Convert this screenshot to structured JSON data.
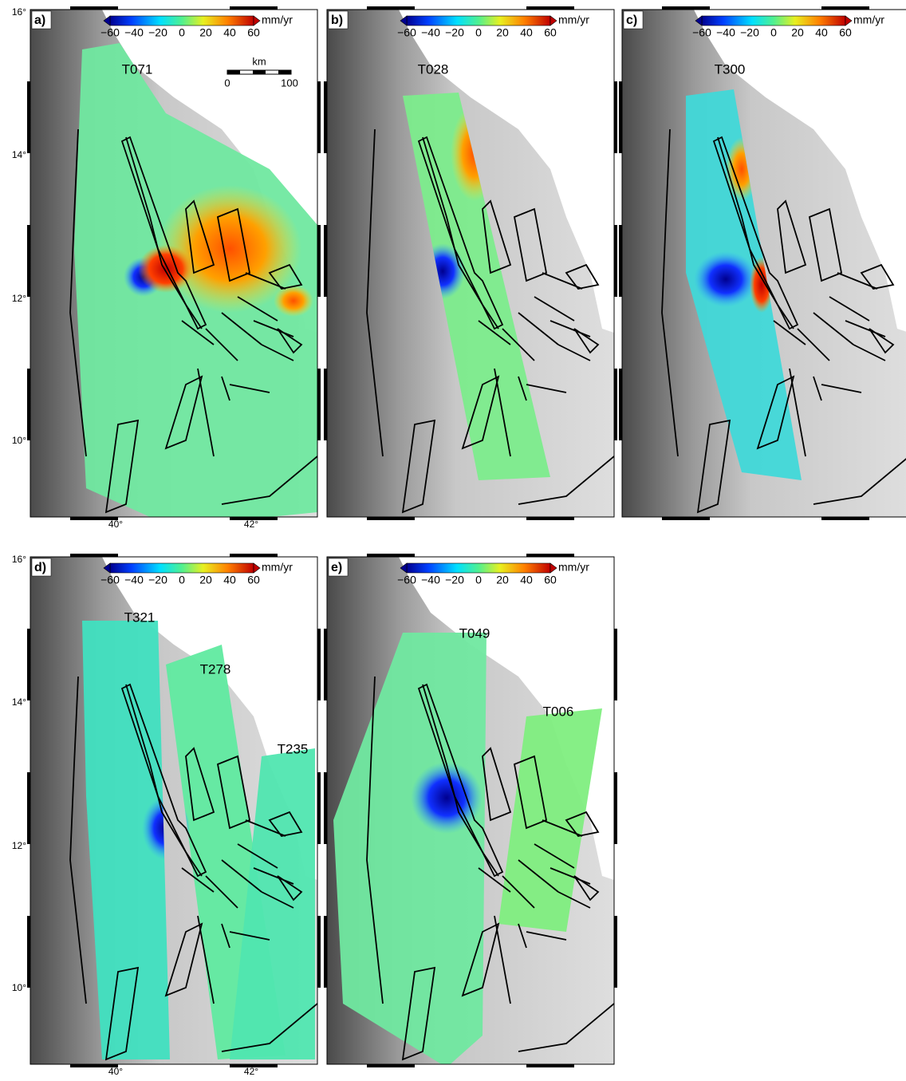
{
  "panels": [
    {
      "label": "a)",
      "tracks": [
        "T071"
      ]
    },
    {
      "label": "b)",
      "tracks": [
        "T028"
      ]
    },
    {
      "label": "c)",
      "tracks": [
        "T300"
      ]
    },
    {
      "label": "d)",
      "tracks": [
        "T321",
        "T278",
        "T235"
      ]
    },
    {
      "label": "e)",
      "tracks": [
        "T049",
        "T006"
      ]
    }
  ],
  "colorbar": {
    "ticks": [
      "−60",
      "−40",
      "−20",
      "0",
      "20",
      "40",
      "60"
    ],
    "unit": "mm/yr"
  },
  "scale_bar": {
    "unit": "km",
    "labels": [
      "0",
      "100"
    ]
  },
  "axes": {
    "lat_labels": [
      "16°",
      "14°",
      "12°",
      "10°"
    ],
    "lon_labels": [
      "40°",
      "42°"
    ]
  }
}
